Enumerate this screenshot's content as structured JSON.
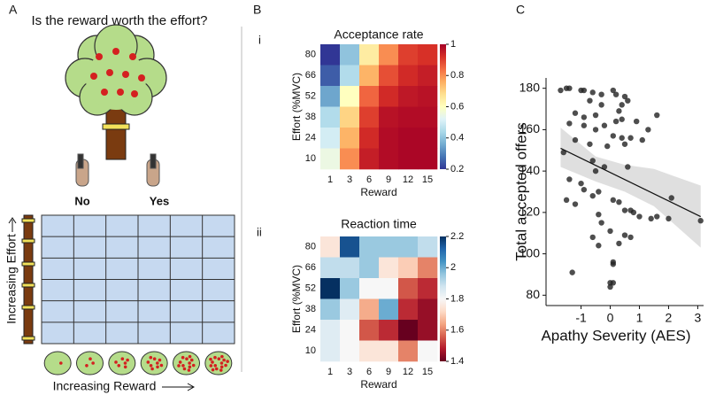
{
  "panel_labels": {
    "a": "A",
    "b": "B",
    "c": "C"
  },
  "panel_a": {
    "title": "Is the reward worth the effort?",
    "no": "No",
    "yes": "Yes",
    "y_label": "Increasing Effort",
    "x_label": "Increasing Reward"
  },
  "chart_data": [
    {
      "type": "heatmap",
      "panel": "i",
      "title": "Acceptance rate",
      "x_label": "Reward",
      "y_label": "Effort (%MVC)",
      "x_categories": [
        1,
        3,
        6,
        9,
        12,
        15
      ],
      "y_categories": [
        80,
        66,
        52,
        38,
        24,
        10
      ],
      "values": [
        [
          0.2,
          0.4,
          0.65,
          0.8,
          0.9,
          0.92
        ],
        [
          0.25,
          0.45,
          0.75,
          0.88,
          0.93,
          0.95
        ],
        [
          0.35,
          0.6,
          0.85,
          0.93,
          0.96,
          0.97
        ],
        [
          0.45,
          0.7,
          0.9,
          0.97,
          0.98,
          0.98
        ],
        [
          0.5,
          0.75,
          0.93,
          0.98,
          0.99,
          0.99
        ],
        [
          0.55,
          0.8,
          0.95,
          0.98,
          0.99,
          0.99
        ]
      ],
      "colormap": "RdYlBu_r",
      "clim": [
        0.2,
        1
      ],
      "cticks": [
        0.2,
        0.4,
        0.6,
        0.8,
        1
      ]
    },
    {
      "type": "heatmap",
      "panel": "ii",
      "title": "Reaction time",
      "x_label": "Reward",
      "y_label": "Effort (%MVC)",
      "x_categories": [
        1,
        3,
        6,
        9,
        12,
        15
      ],
      "y_categories": [
        80,
        66,
        52,
        38,
        24,
        10
      ],
      "values": [
        [
          1.75,
          2.15,
          1.95,
          1.95,
          1.95,
          1.9
        ],
        [
          1.9,
          1.9,
          1.95,
          1.75,
          1.7,
          1.6
        ],
        [
          2.2,
          1.95,
          1.8,
          1.8,
          1.55,
          1.5
        ],
        [
          1.95,
          1.85,
          1.65,
          2.0,
          1.5,
          1.45
        ],
        [
          1.85,
          1.8,
          1.55,
          1.5,
          1.4,
          1.45
        ],
        [
          1.85,
          1.8,
          1.75,
          1.75,
          1.6,
          1.8
        ]
      ],
      "colormap": "RdBu",
      "clim": [
        1.4,
        2.2
      ],
      "cticks": [
        1.4,
        1.6,
        1.8,
        2,
        2.2
      ]
    },
    {
      "type": "scatter",
      "x_label": "Apathy Severity (AES)",
      "y_label": "Total accepted offers",
      "color": "#222222",
      "x": [
        -1.7,
        -1.5,
        -1.4,
        -1.0,
        -0.9,
        -0.6,
        -0.3,
        0.1,
        0.2,
        0.5,
        -0.7,
        -0.3,
        0.4,
        0.6,
        -1.2,
        -0.9,
        -0.5,
        0.3,
        1.6,
        0.4,
        -1.4,
        -0.9,
        -0.5,
        -0.2,
        0.2,
        0.9,
        1.3,
        0.1,
        0.4,
        0.7,
        1.1,
        0.5,
        -1.6,
        -1.2,
        -0.7,
        -0.1,
        -0.6,
        -0.5,
        -0.2,
        0.6,
        -1.4,
        -1.0,
        -0.9,
        -0.6,
        -0.4,
        -1.5,
        -1.2,
        0.1,
        0.3,
        0.5,
        0.7,
        0.8,
        1.0,
        1.4,
        1.6,
        2.0,
        3.1,
        2.1,
        -0.4,
        -0.3,
        0.0,
        -0.6,
        0.5,
        0.7,
        -0.4,
        0.3,
        0.1,
        0.1,
        -1.3,
        0.0,
        0.0,
        0.1
      ],
      "y": [
        179,
        180,
        180,
        179,
        179,
        178,
        177,
        179,
        177,
        176,
        174,
        172,
        172,
        174,
        168,
        166,
        167,
        169,
        167,
        165,
        163,
        162,
        160,
        162,
        164,
        164,
        160,
        157,
        156,
        156,
        155,
        153,
        149,
        155,
        153,
        152,
        145,
        140,
        142,
        142,
        136,
        134,
        131,
        128,
        130,
        126,
        124,
        126,
        125,
        121,
        121,
        120,
        118,
        117,
        118,
        117,
        116,
        127,
        119,
        115,
        111,
        108,
        109,
        108,
        104,
        105,
        96,
        95,
        91,
        86,
        84,
        86
      ],
      "fit": {
        "color": "#111111",
        "x": [
          -1.7,
          3.1
        ],
        "y": [
          151,
          118
        ]
      },
      "ci": {
        "color": "#d9d9d9",
        "x": [
          -1.7,
          -0.5,
          0.5,
          1.5,
          3.1
        ],
        "lower": [
          142,
          135,
          130,
          123,
          103
        ],
        "upper": [
          161,
          147,
          143,
          141,
          133
        ]
      },
      "xlim": [
        -2.2,
        3.2
      ],
      "ylim": [
        75,
        185
      ],
      "xticks": [
        -1,
        0,
        1,
        2,
        3
      ],
      "yticks": [
        80,
        100,
        120,
        140,
        160,
        180
      ]
    }
  ]
}
